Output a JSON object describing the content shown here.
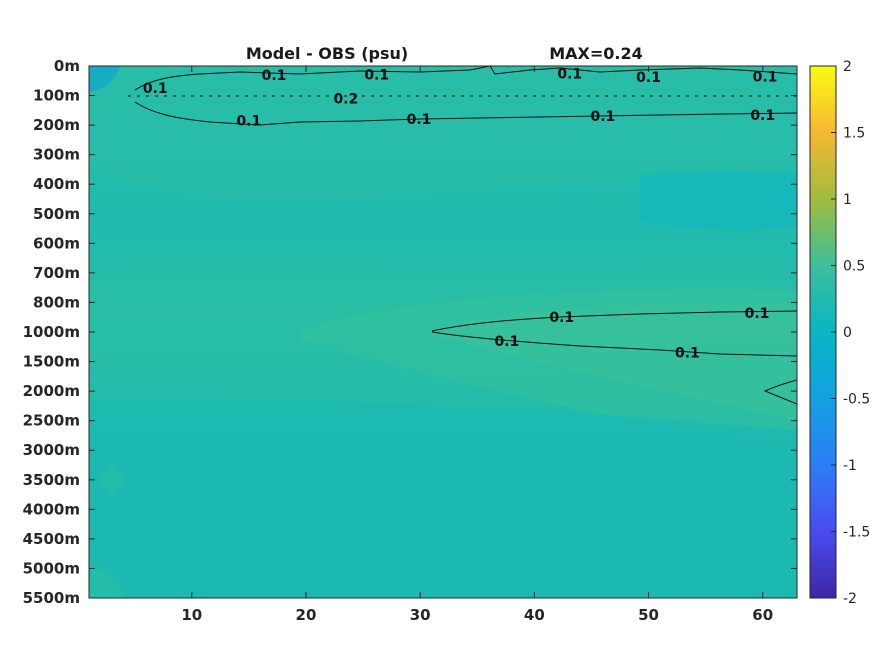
{
  "chart_data": {
    "type": "heatmap",
    "title": "Model - OBS (psu)",
    "annotation": "MAX=0.24",
    "x_ticks": [
      10,
      20,
      30,
      40,
      50,
      60
    ],
    "xlim": [
      1,
      63
    ],
    "y_depth_labels": [
      "0m",
      "100m",
      "200m",
      "300m",
      "400m",
      "500m",
      "600m",
      "700m",
      "800m",
      "1000m",
      "1500m",
      "2000m",
      "2500m",
      "3000m",
      "3500m",
      "4000m",
      "4500m",
      "5000m",
      "5500m"
    ],
    "colorbar": {
      "range": [
        -2,
        2
      ],
      "ticks": [
        "2",
        "1.5",
        "1",
        "0.5",
        "0",
        "-0.5",
        "-1",
        "-1.5",
        "-2"
      ]
    },
    "contour_level": 0.1,
    "contour_labels": [
      {
        "text": "0.1",
        "x": 6.8,
        "depth_index": 0.75
      },
      {
        "text": "0.1",
        "x": 17.2,
        "depth_index": 0.3
      },
      {
        "text": "0.1",
        "x": 26.2,
        "depth_index": 0.28
      },
      {
        "text": "0.1",
        "x": 43.1,
        "depth_index": 0.25
      },
      {
        "text": "0.1",
        "x": 50.0,
        "depth_index": 0.38
      },
      {
        "text": "0.1",
        "x": 60.2,
        "depth_index": 0.35
      },
      {
        "text": "0.2",
        "x": 23.5,
        "depth_index": 1.1
      },
      {
        "text": "0.1",
        "x": 15.0,
        "depth_index": 1.85
      },
      {
        "text": "0.1",
        "x": 29.9,
        "depth_index": 1.8
      },
      {
        "text": "0.1",
        "x": 46.0,
        "depth_index": 1.7
      },
      {
        "text": "0.1",
        "x": 60.0,
        "depth_index": 1.65
      },
      {
        "text": "0.1",
        "x": 42.4,
        "depth_index": 8.5
      },
      {
        "text": "0.1",
        "x": 59.5,
        "depth_index": 8.35
      },
      {
        "text": "0.1",
        "x": 37.6,
        "depth_index": 9.3
      },
      {
        "text": "0.1",
        "x": 53.4,
        "depth_index": 9.7
      }
    ],
    "colors": {
      "background_field": "#1bb9b1",
      "surface_band": "#26bda9",
      "deep_band": "#20bbad",
      "positive_tongue": "#35c09d",
      "cool_patch": "#10b8c5"
    }
  }
}
